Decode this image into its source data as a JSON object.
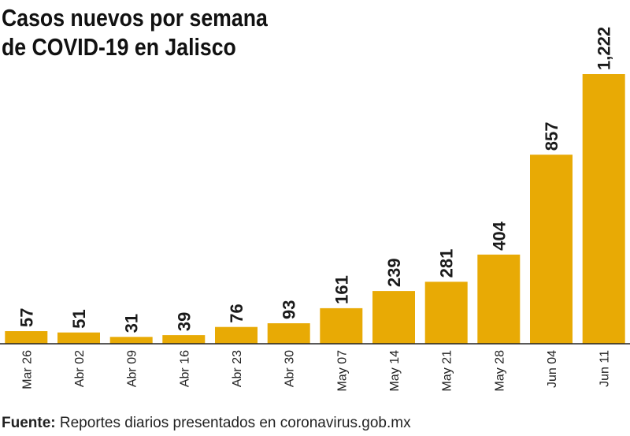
{
  "chart_data": {
    "type": "bar",
    "title": [
      "Casos nuevos por semana",
      "de COVID-19 en Jalisco"
    ],
    "categories": [
      "Mar 26",
      "Abr 02",
      "Abr 09",
      "Abr 16",
      "Abr 23",
      "Abr 30",
      "May 07",
      "May 14",
      "May 21",
      "May 28",
      "Jun 04",
      "Jun 11"
    ],
    "values": [
      57,
      51,
      31,
      39,
      76,
      93,
      161,
      239,
      281,
      404,
      857,
      1222
    ],
    "value_labels": [
      "57",
      "51",
      "31",
      "39",
      "76",
      "93",
      "161",
      "239",
      "281",
      "404",
      "857",
      "1,222"
    ],
    "xlabel": "",
    "ylabel": "",
    "ylim": [
      0,
      1222
    ],
    "grid": false,
    "legend": "none"
  },
  "source": {
    "label": "Fuente:",
    "text": "Reportes diarios presentados en coronavirus.gob.mx"
  },
  "colors": {
    "bar": "#E8AA05",
    "text": "#111111"
  }
}
